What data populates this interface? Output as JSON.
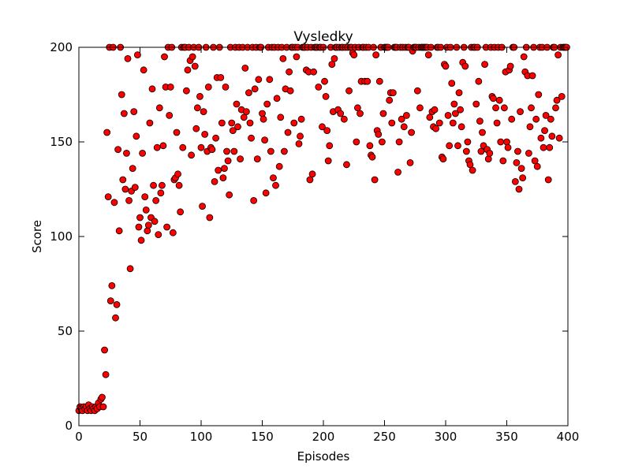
{
  "chart_data": {
    "type": "scatter",
    "title": "Vysledky",
    "xlabel": "Episodes",
    "ylabel": "Score",
    "xlim": [
      0,
      400
    ],
    "ylim": [
      0,
      200
    ],
    "xticks": [
      0,
      50,
      100,
      150,
      200,
      250,
      300,
      350,
      400
    ],
    "yticks": [
      0,
      50,
      100,
      150,
      200
    ],
    "grid": false,
    "series": [
      {
        "color": "#ff0000",
        "x": [
          0,
          1,
          2,
          3,
          4,
          5,
          6,
          7,
          8,
          9,
          10,
          11,
          12,
          13,
          14,
          15,
          16,
          17,
          18,
          19,
          20,
          21,
          22,
          23,
          24,
          25,
          26,
          27,
          28,
          29,
          30,
          31,
          32,
          33,
          34,
          35,
          36,
          37,
          38,
          39,
          40,
          41,
          42,
          43,
          44,
          45,
          46,
          47,
          48,
          49,
          50,
          51,
          52,
          53,
          54,
          55,
          56,
          57,
          58,
          59,
          60,
          61,
          62,
          63,
          64,
          65,
          66,
          67,
          68,
          69,
          70,
          71,
          72,
          73,
          74,
          75,
          76,
          77,
          78,
          79,
          80,
          81,
          82,
          83,
          84,
          85,
          86,
          87,
          88,
          89,
          90,
          91,
          92,
          93,
          94,
          95,
          96,
          97,
          98,
          99,
          100,
          101,
          102,
          103,
          104,
          105,
          106,
          107,
          108,
          109,
          110,
          111,
          112,
          113,
          114,
          115,
          116,
          117,
          118,
          119,
          120,
          121,
          122,
          123,
          124,
          125,
          126,
          127,
          128,
          129,
          130,
          131,
          132,
          133,
          134,
          135,
          136,
          137,
          138,
          139,
          140,
          141,
          142,
          143,
          144,
          145,
          146,
          147,
          148,
          149,
          150,
          151,
          152,
          153,
          154,
          155,
          156,
          157,
          158,
          159,
          160,
          161,
          162,
          163,
          164,
          165,
          166,
          167,
          168,
          169,
          170,
          171,
          172,
          173,
          174,
          175,
          176,
          177,
          178,
          179,
          180,
          181,
          182,
          183,
          184,
          185,
          186,
          187,
          188,
          189,
          190,
          191,
          192,
          193,
          194,
          195,
          196,
          197,
          198,
          199,
          200,
          201,
          202,
          203,
          204,
          205,
          206,
          207,
          208,
          209,
          210,
          211,
          212,
          213,
          214,
          215,
          216,
          217,
          218,
          219,
          220,
          221,
          222,
          223,
          224,
          225,
          226,
          227,
          228,
          229,
          230,
          231,
          232,
          233,
          234,
          235,
          236,
          237,
          238,
          239,
          240,
          241,
          242,
          243,
          244,
          245,
          246,
          247,
          248,
          249,
          250,
          251,
          252,
          253,
          254,
          255,
          256,
          257,
          258,
          259,
          260,
          261,
          262,
          263,
          264,
          265,
          266,
          267,
          268,
          269,
          270,
          271,
          272,
          273,
          274,
          275,
          276,
          277,
          278,
          279,
          280,
          281,
          282,
          283,
          284,
          285,
          286,
          287,
          288,
          289,
          290,
          291,
          292,
          293,
          294,
          295,
          296,
          297,
          298,
          299,
          300,
          301,
          302,
          303,
          304,
          305,
          306,
          307,
          308,
          309,
          310,
          311,
          312,
          313,
          314,
          315,
          316,
          317,
          318,
          319,
          320,
          321,
          322,
          323,
          324,
          325,
          326,
          327,
          328,
          329,
          330,
          331,
          332,
          333,
          334,
          335,
          336,
          337,
          338,
          339,
          340,
          341,
          342,
          343,
          344,
          345,
          346,
          347,
          348,
          349,
          350,
          351,
          352,
          353,
          354,
          355,
          356,
          357,
          358,
          359,
          360,
          361,
          362,
          363,
          364,
          365,
          366,
          367,
          368,
          369,
          370,
          371,
          372,
          373,
          374,
          375,
          376,
          377,
          378,
          379,
          380,
          381,
          382,
          383,
          384,
          385,
          386,
          387,
          388,
          389,
          390,
          391,
          392,
          393,
          394,
          395,
          396,
          397,
          398,
          399
        ],
        "values": [
          8,
          10,
          9,
          8,
          10,
          9,
          10,
          8,
          11,
          9,
          8,
          10,
          9,
          8,
          10,
          9,
          12,
          10,
          14,
          15,
          10,
          40,
          27,
          155,
          121,
          200,
          66,
          74,
          200,
          118,
          57,
          64,
          146,
          103,
          200,
          175,
          130,
          165,
          125,
          144,
          194,
          119,
          83,
          124,
          136,
          166,
          126,
          153,
          196,
          105,
          110,
          98,
          144,
          188,
          121,
          114,
          103,
          106,
          160,
          110,
          178,
          127,
          108,
          119,
          147,
          101,
          168,
          123,
          127,
          148,
          195,
          179,
          105,
          200,
          164,
          179,
          200,
          102,
          130,
          131,
          155,
          133,
          127,
          113,
          200,
          147,
          200,
          200,
          177,
          188,
          200,
          193,
          143,
          195,
          200,
          190,
          157,
          168,
          200,
          174,
          147,
          116,
          166,
          154,
          200,
          145,
          179,
          110,
          147,
          146,
          200,
          129,
          152,
          184,
          135,
          200,
          184,
          160,
          131,
          136,
          179,
          145,
          140,
          122,
          200,
          160,
          156,
          145,
          200,
          170,
          158,
          200,
          141,
          167,
          200,
          163,
          189,
          166,
          200,
          176,
          160,
          152,
          200,
          119,
          178,
          200,
          141,
          183,
          200,
          200,
          165,
          162,
          151,
          123,
          170,
          200,
          183,
          145,
          200,
          131,
          200,
          127,
          173,
          200,
          137,
          163,
          200,
          194,
          145,
          178,
          200,
          155,
          187,
          177,
          200,
          200,
          160,
          200,
          195,
          200,
          149,
          153,
          162,
          200,
          200,
          200,
          188,
          200,
          187,
          130,
          200,
          133,
          187,
          200,
          200,
          200,
          179,
          200,
          200,
          158,
          200,
          182,
          174,
          156,
          140,
          148,
          200,
          191,
          166,
          194,
          200,
          200,
          167,
          200,
          165,
          200,
          200,
          162,
          200,
          138,
          200,
          177,
          200,
          200,
          197,
          196,
          200,
          150,
          168,
          200,
          165,
          182,
          200,
          200,
          182,
          200,
          182,
          200,
          148,
          143,
          142,
          200,
          130,
          196,
          156,
          154,
          182,
          200,
          150,
          165,
          200,
          200,
          200,
          200,
          172,
          176,
          160,
          176,
          200,
          200,
          200,
          134,
          150,
          200,
          162,
          200,
          158,
          200,
          164,
          200,
          200,
          139,
          155,
          198,
          200,
          200,
          200,
          177,
          200,
          168,
          200,
          200,
          200,
          200,
          200,
          200,
          196,
          163,
          200,
          166,
          158,
          167,
          157,
          200,
          200,
          160,
          200,
          142,
          141,
          191,
          190,
          200,
          164,
          148,
          200,
          181,
          160,
          170,
          165,
          200,
          148,
          176,
          167,
          158,
          192,
          200,
          190,
          145,
          150,
          140,
          138,
          200,
          135,
          200,
          200,
          170,
          200,
          182,
          161,
          145,
          155,
          148,
          191,
          200,
          146,
          141,
          144,
          200,
          174,
          173,
          200,
          168,
          160,
          200,
          172,
          150,
          200,
          140,
          168,
          187,
          150,
          147,
          188,
          190,
          162,
          200,
          200,
          129,
          139,
          145,
          125,
          166,
          136,
          131,
          195,
          187,
          200,
          185,
          144,
          158,
          168,
          185,
          200,
          140,
          162,
          137,
          175,
          200,
          152,
          200,
          147,
          156,
          164,
          200,
          130,
          147,
          162,
          153,
          200,
          200,
          168,
          172,
          196,
          152,
          200,
          174,
          200,
          200,
          200,
          200
        ]
      }
    ]
  }
}
